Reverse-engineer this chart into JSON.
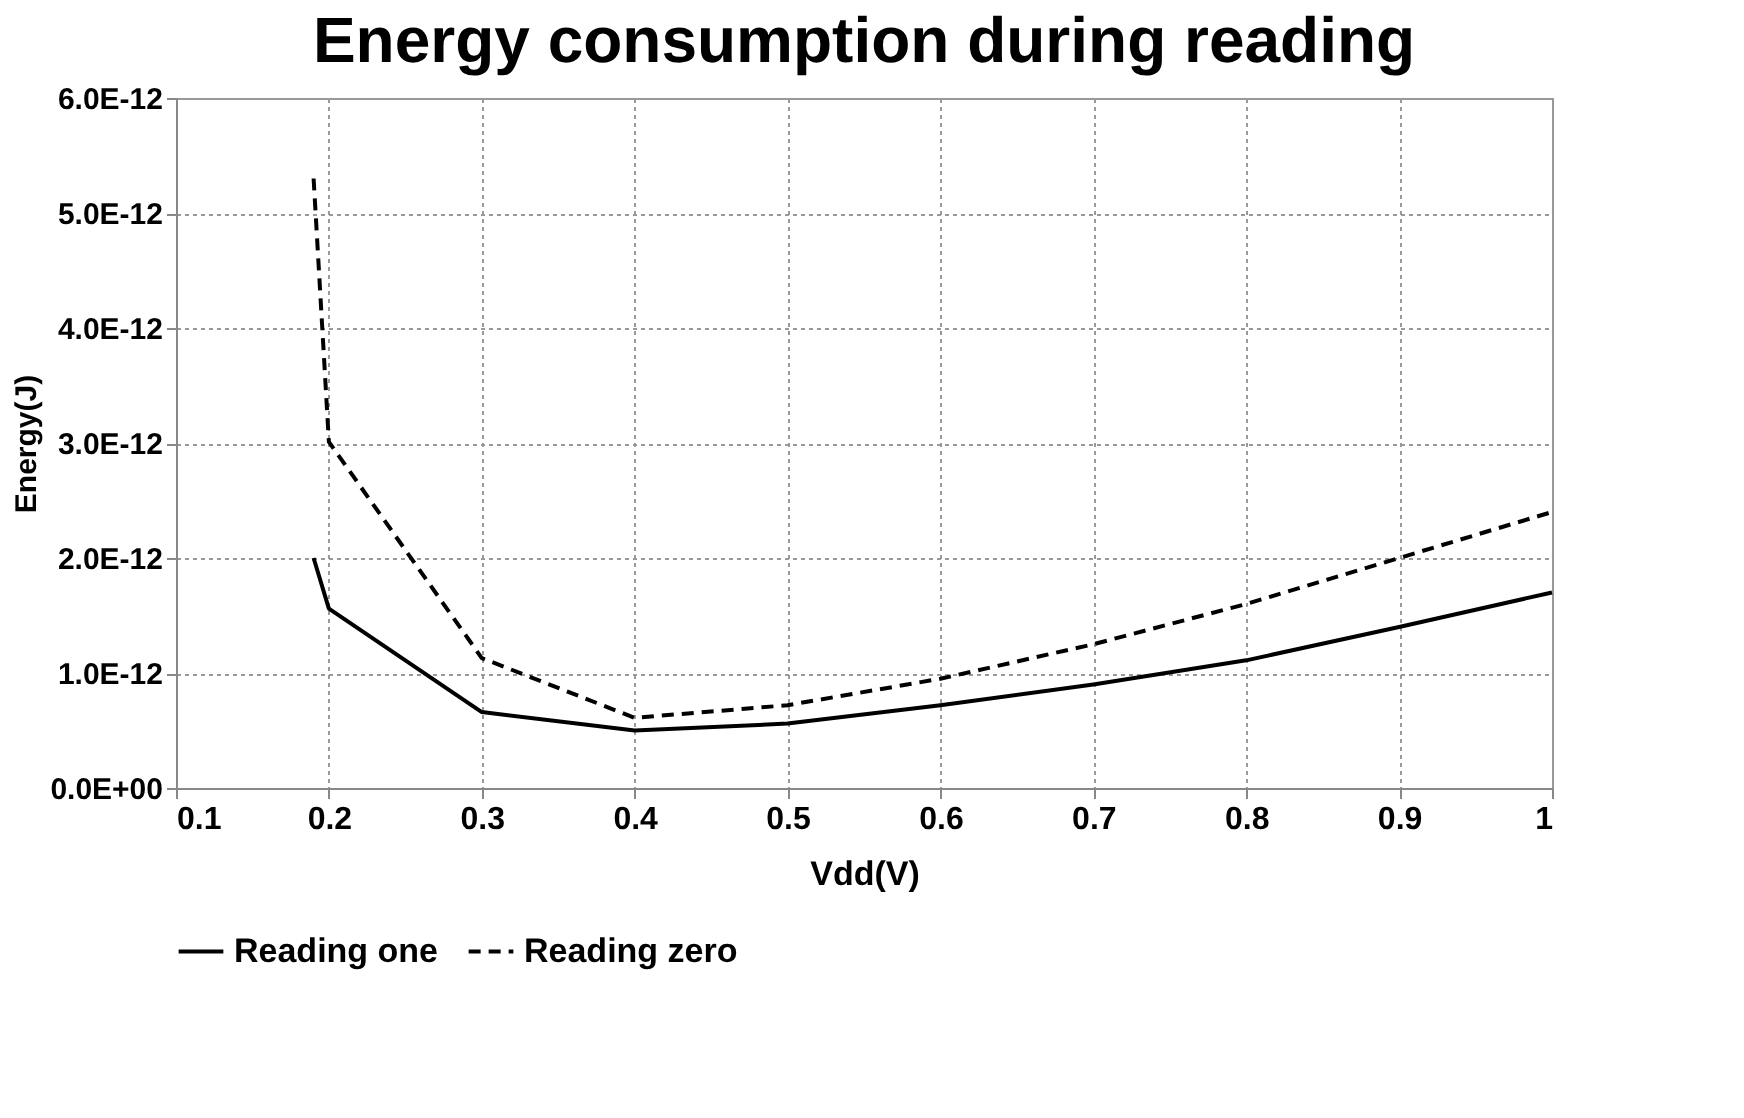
{
  "chart_data": {
    "type": "line",
    "title": "Energy consumption during reading",
    "xlabel": "Vdd(V)",
    "ylabel": "Energy(J)",
    "x": [
      0.19,
      0.2,
      0.3,
      0.4,
      0.5,
      0.6,
      0.7,
      0.8,
      0.9,
      1.0
    ],
    "series": [
      {
        "name": "Reading one",
        "color": "#000000",
        "line_style": "solid",
        "values": [
          2e-12,
          1.56e-12,
          6.6e-13,
          5e-13,
          5.6e-13,
          7.2e-13,
          9e-13,
          1.11e-12,
          1.4e-12,
          1.7e-12
        ]
      },
      {
        "name": "Reading zero",
        "color": "#000000",
        "line_style": "dashed",
        "values": [
          5.3e-12,
          3.01e-12,
          1.13e-12,
          6.1e-13,
          7.2e-13,
          9.5e-13,
          1.25e-12,
          1.6e-12,
          2e-12,
          2.4e-12
        ]
      }
    ],
    "xlim": [
      0.1,
      1.0
    ],
    "xticks": [
      0.1,
      0.2,
      0.3,
      0.4,
      0.5,
      0.6,
      0.7,
      0.8,
      0.9,
      1
    ],
    "ylim": [
      0,
      6e-12
    ],
    "yticks": [
      {
        "value": 0,
        "label": "0.0E+00"
      },
      {
        "value": 1e-12,
        "label": "1.0E-12"
      },
      {
        "value": 2e-12,
        "label": "2.0E-12"
      },
      {
        "value": 3e-12,
        "label": "3.0E-12"
      },
      {
        "value": 4e-12,
        "label": "4.0E-12"
      },
      {
        "value": 5e-12,
        "label": "5.0E-12"
      },
      {
        "value": 6e-12,
        "label": "6.0E-12"
      }
    ],
    "grid": true,
    "legend": "bottom",
    "marker": "none"
  }
}
